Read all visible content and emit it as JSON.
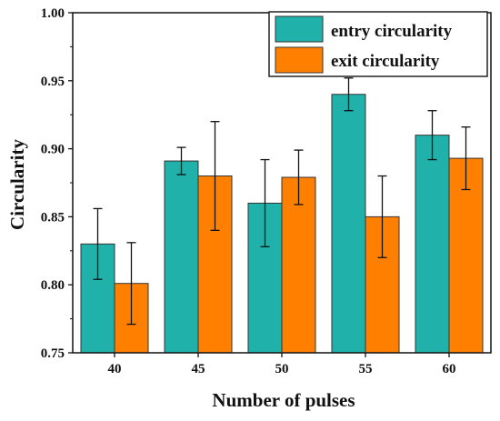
{
  "chart_data": {
    "type": "bar",
    "xlabel": "Number of pulses",
    "ylabel": "Circularity",
    "categories": [
      "40",
      "45",
      "50",
      "55",
      "60"
    ],
    "ylim": [
      0.75,
      1.0
    ],
    "yticks": [
      "0.75",
      "0.80",
      "0.85",
      "0.90",
      "0.95",
      "1.00"
    ],
    "legend_position": "top-right",
    "grid": false,
    "series": [
      {
        "name": "entry circularity",
        "color": "#20b2aa",
        "values": [
          0.83,
          0.891,
          0.86,
          0.94,
          0.91
        ],
        "error": [
          0.026,
          0.01,
          0.032,
          0.012,
          0.018
        ]
      },
      {
        "name": "exit circularity",
        "color": "#ff8000",
        "values": [
          0.801,
          0.88,
          0.879,
          0.85,
          0.893
        ],
        "error": [
          0.03,
          0.04,
          0.02,
          0.03,
          0.023
        ]
      }
    ]
  }
}
